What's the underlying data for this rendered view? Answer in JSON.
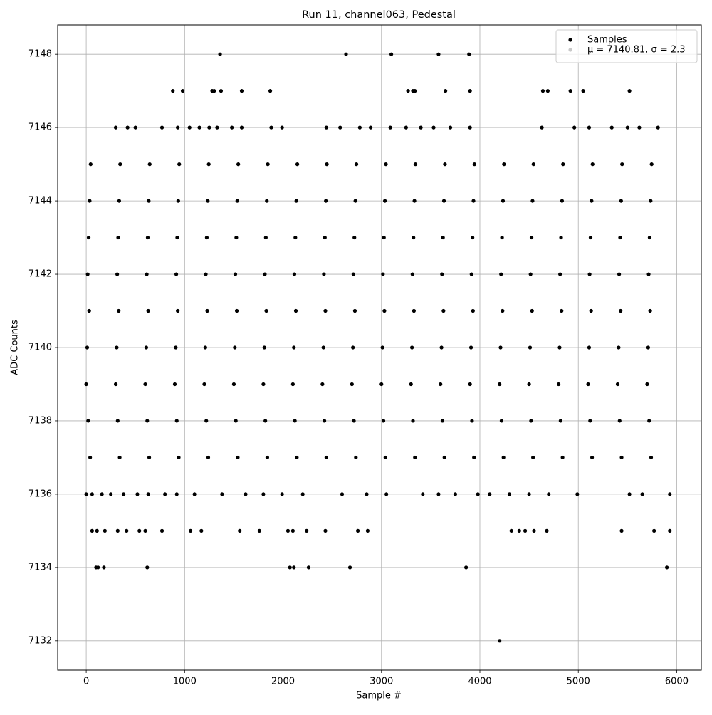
{
  "chart_data": {
    "type": "scatter",
    "title": "Run 11, channel063, Pedestal",
    "x_label": "Sample #",
    "y_label": "ADC Counts",
    "xlim": [
      -290,
      6250
    ],
    "ylim": [
      7131.2,
      7148.8
    ],
    "xticks": [
      0,
      1000,
      2000,
      3000,
      4000,
      5000,
      6000
    ],
    "yticks": [
      7132,
      7134,
      7136,
      7138,
      7140,
      7142,
      7144,
      7146,
      7148
    ],
    "grid": true,
    "legend": "upper right",
    "series": [
      {
        "name": "Samples",
        "color": "#000000",
        "x": [
          1360,
          2640,
          3100,
          3580,
          3890,
          880,
          980,
          1280,
          1300,
          1370,
          1580,
          1870,
          3270,
          3320,
          3340,
          3650,
          3900,
          4640,
          4690,
          4920,
          5050,
          5520,
          300,
          420,
          500,
          770,
          930,
          1050,
          1150,
          1250,
          1330,
          1480,
          1580,
          1880,
          1990,
          2440,
          2580,
          2780,
          2890,
          3090,
          3250,
          3400,
          3530,
          3700,
          3900,
          4630,
          4960,
          5110,
          5340,
          5500,
          5620,
          5810,
          45,
          345,
          645,
          945,
          1245,
          1545,
          1845,
          2145,
          2445,
          2745,
          3045,
          3345,
          3645,
          3945,
          4245,
          4545,
          4845,
          5145,
          5445,
          5745,
          35,
          335,
          635,
          935,
          1235,
          1535,
          1835,
          2135,
          2435,
          2735,
          3035,
          3335,
          3635,
          3935,
          4235,
          4535,
          4835,
          5135,
          5435,
          5735,
          25,
          325,
          625,
          925,
          1225,
          1525,
          1825,
          2125,
          2425,
          2725,
          3025,
          3325,
          3625,
          3925,
          4225,
          4525,
          4825,
          5125,
          5425,
          5725,
          15,
          315,
          615,
          915,
          1215,
          1515,
          1815,
          2115,
          2415,
          2715,
          3015,
          3315,
          3615,
          3915,
          4215,
          4515,
          4815,
          5115,
          5415,
          5715,
          30,
          330,
          630,
          930,
          1230,
          1530,
          1830,
          2130,
          2430,
          2730,
          3030,
          3330,
          3630,
          3930,
          4230,
          4530,
          4830,
          5130,
          5430,
          5730,
          10,
          310,
          610,
          910,
          1210,
          1510,
          1810,
          2110,
          2410,
          2710,
          3010,
          3310,
          3610,
          3910,
          4210,
          4510,
          4810,
          5110,
          5410,
          5710,
          0,
          300,
          600,
          900,
          1200,
          1500,
          1800,
          2100,
          2400,
          2700,
          3000,
          3300,
          3600,
          3900,
          4200,
          4500,
          4800,
          5100,
          5400,
          5700,
          20,
          320,
          620,
          920,
          1220,
          1520,
          1820,
          2120,
          2420,
          2720,
          3020,
          3320,
          3620,
          3920,
          4220,
          4520,
          4820,
          5120,
          5420,
          5720,
          40,
          340,
          640,
          940,
          1240,
          1540,
          1840,
          2140,
          2440,
          2740,
          3040,
          3340,
          3640,
          3940,
          4240,
          4540,
          4840,
          5140,
          5440,
          5740,
          0,
          60,
          160,
          250,
          380,
          520,
          630,
          800,
          920,
          1100,
          1380,
          1620,
          1800,
          1990,
          2200,
          2600,
          2850,
          3050,
          3420,
          3580,
          3750,
          3980,
          4100,
          4300,
          4500,
          4700,
          4990,
          5520,
          5650,
          5930,
          60,
          110,
          190,
          320,
          410,
          540,
          600,
          770,
          1060,
          1170,
          1560,
          1760,
          2050,
          2100,
          2240,
          2430,
          2760,
          2860,
          4320,
          4400,
          4460,
          4550,
          4680,
          5440,
          5770,
          5930,
          100,
          120,
          180,
          620,
          2070,
          2110,
          2260,
          2680,
          3860,
          5900,
          4200
        ],
        "values": [
          7148,
          7148,
          7148,
          7148,
          7148,
          7147,
          7147,
          7147,
          7147,
          7147,
          7147,
          7147,
          7147,
          7147,
          7147,
          7147,
          7147,
          7147,
          7147,
          7147,
          7147,
          7147,
          7146,
          7146,
          7146,
          7146,
          7146,
          7146,
          7146,
          7146,
          7146,
          7146,
          7146,
          7146,
          7146,
          7146,
          7146,
          7146,
          7146,
          7146,
          7146,
          7146,
          7146,
          7146,
          7146,
          7146,
          7146,
          7146,
          7146,
          7146,
          7146,
          7146,
          7145,
          7145,
          7145,
          7145,
          7145,
          7145,
          7145,
          7145,
          7145,
          7145,
          7145,
          7145,
          7145,
          7145,
          7145,
          7145,
          7145,
          7145,
          7145,
          7145,
          7144,
          7144,
          7144,
          7144,
          7144,
          7144,
          7144,
          7144,
          7144,
          7144,
          7144,
          7144,
          7144,
          7144,
          7144,
          7144,
          7144,
          7144,
          7144,
          7144,
          7143,
          7143,
          7143,
          7143,
          7143,
          7143,
          7143,
          7143,
          7143,
          7143,
          7143,
          7143,
          7143,
          7143,
          7143,
          7143,
          7143,
          7143,
          7143,
          7143,
          7142,
          7142,
          7142,
          7142,
          7142,
          7142,
          7142,
          7142,
          7142,
          7142,
          7142,
          7142,
          7142,
          7142,
          7142,
          7142,
          7142,
          7142,
          7142,
          7142,
          7141,
          7141,
          7141,
          7141,
          7141,
          7141,
          7141,
          7141,
          7141,
          7141,
          7141,
          7141,
          7141,
          7141,
          7141,
          7141,
          7141,
          7141,
          7141,
          7141,
          7140,
          7140,
          7140,
          7140,
          7140,
          7140,
          7140,
          7140,
          7140,
          7140,
          7140,
          7140,
          7140,
          7140,
          7140,
          7140,
          7140,
          7140,
          7140,
          7140,
          7139,
          7139,
          7139,
          7139,
          7139,
          7139,
          7139,
          7139,
          7139,
          7139,
          7139,
          7139,
          7139,
          7139,
          7139,
          7139,
          7139,
          7139,
          7139,
          7139,
          7138,
          7138,
          7138,
          7138,
          7138,
          7138,
          7138,
          7138,
          7138,
          7138,
          7138,
          7138,
          7138,
          7138,
          7138,
          7138,
          7138,
          7138,
          7138,
          7138,
          7137,
          7137,
          7137,
          7137,
          7137,
          7137,
          7137,
          7137,
          7137,
          7137,
          7137,
          7137,
          7137,
          7137,
          7137,
          7137,
          7137,
          7137,
          7137,
          7137,
          7136,
          7136,
          7136,
          7136,
          7136,
          7136,
          7136,
          7136,
          7136,
          7136,
          7136,
          7136,
          7136,
          7136,
          7136,
          7136,
          7136,
          7136,
          7136,
          7136,
          7136,
          7136,
          7136,
          7136,
          7136,
          7136,
          7136,
          7136,
          7136,
          7136,
          7135,
          7135,
          7135,
          7135,
          7135,
          7135,
          7135,
          7135,
          7135,
          7135,
          7135,
          7135,
          7135,
          7135,
          7135,
          7135,
          7135,
          7135,
          7135,
          7135,
          7135,
          7135,
          7135,
          7135,
          7135,
          7135,
          7134,
          7134,
          7134,
          7134,
          7134,
          7134,
          7134,
          7134,
          7134,
          7134,
          7132
        ]
      },
      {
        "name": "μ = 7140.81, σ = 2.3",
        "color": "#c8c8c8",
        "x": [],
        "values": []
      }
    ]
  }
}
